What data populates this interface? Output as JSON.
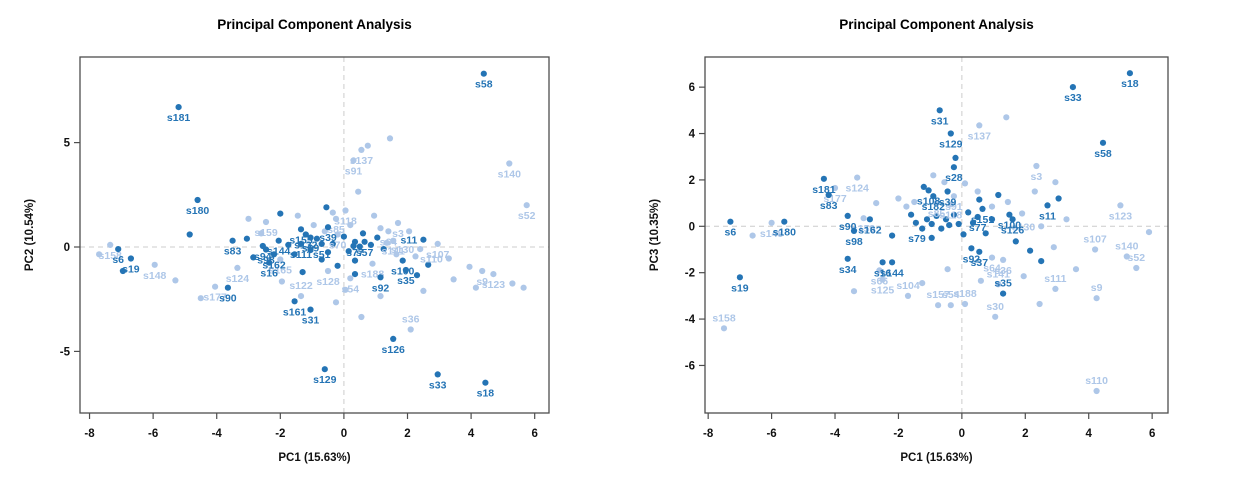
{
  "colors": {
    "dark_point": "#2474b5",
    "light_point": "#aec7e8",
    "frame": "#4d4d4d",
    "dashed_guide": "#cccccc",
    "tick_text": "#111111",
    "background": "#ffffff"
  },
  "chart_data": [
    {
      "type": "scatter",
      "title": "Principal Component Analysis",
      "xlabel": "PC1 (15.63%)",
      "ylabel": "PC2 (10.54%)",
      "xlim": [
        -8.3,
        6.45
      ],
      "ylim": [
        -7.95,
        9.1
      ],
      "xticks": [
        -8,
        -6,
        -4,
        -2,
        0,
        2,
        4,
        6
      ],
      "yticks": [
        -5,
        0,
        5
      ],
      "guides": {
        "x": 0,
        "y": 0
      },
      "grid": "dashed-zero-lines",
      "legend": "none",
      "labeled_dark": [
        [
          "s58",
          4.4,
          8.3
        ],
        [
          "s181",
          -5.2,
          6.7
        ],
        [
          "s180",
          -4.6,
          2.25
        ],
        [
          "s83",
          -3.5,
          0.3
        ],
        [
          "s6",
          -7.1,
          -0.1
        ],
        [
          "s19",
          -6.7,
          -0.55
        ],
        [
          "s94",
          -2.55,
          0.05
        ],
        [
          "s98",
          -2.45,
          -0.12
        ],
        [
          "s144",
          -2.05,
          0.3
        ],
        [
          "s162",
          -2.2,
          -0.35
        ],
        [
          "s16",
          -2.35,
          -0.75
        ],
        [
          "s90",
          -3.65,
          -1.95
        ],
        [
          "s161",
          -1.55,
          -2.6
        ],
        [
          "s31",
          -1.05,
          -3.0
        ],
        [
          "s129",
          -0.6,
          -5.85
        ],
        [
          "s126",
          1.55,
          -4.4
        ],
        [
          "s33",
          2.95,
          -6.1
        ],
        [
          "s18",
          4.45,
          -6.5
        ],
        [
          "s155",
          -1.35,
          0.85
        ],
        [
          "s132",
          -1.2,
          0.6
        ],
        [
          "s39",
          -0.5,
          0.95
        ],
        [
          "s99",
          -1.05,
          0.45
        ],
        [
          "s111",
          -1.35,
          0.15
        ],
        [
          "s51",
          -0.7,
          0.15
        ],
        [
          "s77",
          0.35,
          0.25
        ],
        [
          "s57",
          0.65,
          0.25
        ],
        [
          "s100",
          1.85,
          -0.65
        ],
        [
          "s35",
          1.95,
          -1.1
        ],
        [
          "s92",
          1.15,
          -1.45
        ],
        [
          "s11",
          2.5,
          0.35,
          "l"
        ]
      ],
      "labeled_light": [
        [
          "s158",
          -7.35,
          0.1
        ],
        [
          "s148",
          -5.95,
          -0.85
        ],
        [
          "s124",
          -3.35,
          -1.0
        ],
        [
          "s177",
          -4.05,
          -1.9
        ],
        [
          "s159",
          -2.45,
          1.2
        ],
        [
          "s118",
          0.05,
          1.75
        ],
        [
          "s85",
          -0.25,
          1.35
        ],
        [
          "s137",
          0.55,
          4.65
        ],
        [
          "s91",
          0.3,
          4.15
        ],
        [
          "s140",
          5.2,
          4.0
        ],
        [
          "s52",
          5.75,
          2.0
        ],
        [
          "s3",
          1.7,
          1.15
        ],
        [
          "s64",
          1.4,
          0.75
        ],
        [
          "s70",
          -0.2,
          0.6
        ],
        [
          "s141",
          1.55,
          0.3
        ],
        [
          "s130",
          2.4,
          -0.1,
          "l"
        ],
        [
          "s107",
          2.95,
          0.15
        ],
        [
          "s110",
          3.3,
          -0.55,
          "l"
        ],
        [
          "s188",
          0.9,
          -0.8
        ],
        [
          "s54",
          0.2,
          -1.5
        ],
        [
          "s122",
          -1.35,
          -2.35,
          "a"
        ],
        [
          "s36",
          2.1,
          -3.95,
          "a"
        ],
        [
          "s9",
          4.35,
          -1.15
        ],
        [
          "s123",
          4.7,
          -1.3
        ],
        [
          "s128",
          -0.5,
          -1.15
        ],
        [
          "s165",
          -2.0,
          -0.6
        ]
      ],
      "unlabeled_dark": [
        [
          -6.95,
          -1.15
        ],
        [
          -4.85,
          0.6
        ],
        [
          -3.05,
          0.4
        ],
        [
          -2.85,
          -0.5
        ],
        [
          -2.0,
          1.6
        ],
        [
          -1.75,
          0.1
        ],
        [
          -1.55,
          -0.35
        ],
        [
          -1.3,
          -1.2
        ],
        [
          -1.05,
          -0.15
        ],
        [
          -0.85,
          0.4
        ],
        [
          -0.7,
          -0.6
        ],
        [
          -0.5,
          -0.25
        ],
        [
          -0.35,
          0.15
        ],
        [
          -0.2,
          -0.9
        ],
        [
          0.0,
          0.5
        ],
        [
          0.15,
          -0.2
        ],
        [
          0.35,
          -0.65
        ],
        [
          0.6,
          0.65
        ],
        [
          0.85,
          0.1
        ],
        [
          1.05,
          0.45
        ],
        [
          1.25,
          -0.1
        ],
        [
          2.3,
          -1.35
        ],
        [
          2.65,
          -0.85
        ],
        [
          0.3,
          0.05
        ],
        [
          0.5,
          0.02
        ],
        [
          -0.55,
          1.9
        ],
        [
          0.35,
          -1.3
        ]
      ],
      "unlabeled_light": [
        [
          -7.7,
          -0.35
        ],
        [
          -5.3,
          -1.6
        ],
        [
          -4.5,
          -2.45
        ],
        [
          -3.0,
          1.35
        ],
        [
          -2.6,
          0.65
        ],
        [
          -1.95,
          -1.65
        ],
        [
          -1.45,
          1.5
        ],
        [
          -0.95,
          1.05
        ],
        [
          -0.6,
          0.75
        ],
        [
          -0.35,
          1.65
        ],
        [
          0.2,
          1.05
        ],
        [
          0.45,
          2.65
        ],
        [
          0.95,
          1.5
        ],
        [
          1.15,
          0.9
        ],
        [
          1.35,
          0.2
        ],
        [
          1.65,
          -0.35
        ],
        [
          2.05,
          0.75
        ],
        [
          2.25,
          -0.45
        ],
        [
          3.45,
          -1.55
        ],
        [
          3.95,
          -0.95
        ],
        [
          4.15,
          -1.95
        ],
        [
          5.3,
          -1.75
        ],
        [
          5.65,
          -1.95
        ],
        [
          1.45,
          5.2
        ],
        [
          0.05,
          -2.05
        ],
        [
          -0.25,
          -2.65
        ],
        [
          0.55,
          -3.35
        ],
        [
          1.15,
          -2.35
        ],
        [
          0.75,
          4.85
        ],
        [
          2.5,
          -2.1
        ]
      ]
    },
    {
      "type": "scatter",
      "title": "Principal Component Analysis",
      "xlabel": "PC1 (15.63%)",
      "ylabel": "PC3 (10.35%)",
      "xlim": [
        -8.1,
        6.5
      ],
      "ylim": [
        -8.05,
        7.3
      ],
      "xticks": [
        -8,
        -6,
        -4,
        -2,
        0,
        2,
        4,
        6
      ],
      "yticks": [
        -6,
        -4,
        -2,
        0,
        2,
        4,
        6
      ],
      "guides": {
        "x": 0,
        "y": 0
      },
      "grid": "dashed-zero-lines",
      "legend": "none",
      "labeled_dark": [
        [
          "s18",
          5.3,
          6.6
        ],
        [
          "s33",
          3.5,
          6.0
        ],
        [
          "s31",
          -0.7,
          5.0
        ],
        [
          "s129",
          -0.35,
          4.0
        ],
        [
          "s58",
          4.45,
          3.6
        ],
        [
          "s28",
          -0.25,
          2.55
        ],
        [
          "s181",
          -4.35,
          2.05
        ],
        [
          "s83",
          -4.2,
          1.35
        ],
        [
          "s108",
          -1.05,
          1.55
        ],
        [
          "s182",
          -0.9,
          1.3
        ],
        [
          "s39",
          -0.45,
          1.5
        ],
        [
          "s151",
          0.65,
          0.75
        ],
        [
          "s77",
          0.5,
          0.4
        ],
        [
          "s100",
          1.5,
          0.5
        ],
        [
          "s11",
          2.7,
          0.9
        ],
        [
          "s126",
          1.6,
          0.3
        ],
        [
          "s90",
          -3.6,
          0.45
        ],
        [
          "s98",
          -3.4,
          -0.2
        ],
        [
          "s162",
          -2.9,
          0.3
        ],
        [
          "s180",
          -5.6,
          0.2
        ],
        [
          "s6",
          -7.3,
          0.2
        ],
        [
          "s19",
          -7.0,
          -2.2
        ],
        [
          "s34",
          -3.6,
          -1.4
        ],
        [
          "s16",
          -2.5,
          -1.55
        ],
        [
          "s144",
          -2.2,
          -1.55
        ],
        [
          "s35",
          1.3,
          -2.9,
          "a"
        ],
        [
          "s92",
          0.3,
          -0.95
        ],
        [
          "s37",
          0.55,
          -1.1
        ],
        [
          "s79",
          -0.95,
          -0.5,
          "l"
        ]
      ],
      "labeled_light": [
        [
          "s137",
          0.55,
          4.35
        ],
        [
          "s3",
          2.35,
          2.6
        ],
        [
          "s124",
          -3.3,
          2.1
        ],
        [
          "s177",
          -4.0,
          1.65
        ],
        [
          "s91",
          -0.25,
          1.3
        ],
        [
          "s118",
          -0.35,
          0.95
        ],
        [
          "s85",
          -0.8,
          1.0
        ],
        [
          "s159",
          -3.1,
          0.35
        ],
        [
          "s123",
          5.0,
          0.9
        ],
        [
          "s130",
          2.5,
          0.0,
          "l"
        ],
        [
          "s107",
          4.2,
          -1.0,
          "a"
        ],
        [
          "s140",
          5.2,
          -1.3,
          "a"
        ],
        [
          "s52",
          5.5,
          -1.8,
          "a"
        ],
        [
          "s148",
          -6.0,
          0.15
        ],
        [
          "s64",
          0.95,
          -1.35
        ],
        [
          "s36",
          1.3,
          -1.45
        ],
        [
          "s66",
          -2.6,
          -1.9
        ],
        [
          "s125",
          -2.5,
          -2.3
        ],
        [
          "s104",
          -1.7,
          -3.0,
          "a"
        ],
        [
          "s157",
          -0.75,
          -3.4,
          "a"
        ],
        [
          "s54",
          -0.35,
          -3.4,
          "a"
        ],
        [
          "s188",
          0.1,
          -3.35,
          "a"
        ],
        [
          "s30",
          1.05,
          -3.9,
          "a"
        ],
        [
          "s141",
          1.15,
          -2.5,
          "a"
        ],
        [
          "s111",
          2.95,
          -2.7,
          "a"
        ],
        [
          "s9",
          4.25,
          -3.1,
          "a"
        ],
        [
          "s158",
          -7.5,
          -4.4,
          "a"
        ],
        [
          "s110",
          4.25,
          -7.1,
          "a"
        ]
      ],
      "unlabeled_dark": [
        [
          -0.2,
          2.95
        ],
        [
          -1.2,
          1.7
        ],
        [
          -1.6,
          0.5
        ],
        [
          -1.45,
          0.15
        ],
        [
          -1.25,
          -0.1
        ],
        [
          -1.1,
          0.3
        ],
        [
          -0.95,
          0.1
        ],
        [
          -0.8,
          0.45
        ],
        [
          -0.65,
          -0.1
        ],
        [
          -0.5,
          0.3
        ],
        [
          -0.4,
          0.05
        ],
        [
          -0.25,
          0.5
        ],
        [
          -0.1,
          0.1
        ],
        [
          0.05,
          -0.35
        ],
        [
          0.2,
          0.6
        ],
        [
          0.35,
          0.15
        ],
        [
          0.55,
          1.15
        ],
        [
          0.75,
          -0.3
        ],
        [
          0.95,
          0.3
        ],
        [
          1.15,
          1.35
        ],
        [
          1.7,
          -0.65
        ],
        [
          2.15,
          -1.05
        ],
        [
          2.5,
          -1.5
        ],
        [
          3.05,
          1.2
        ],
        [
          -2.2,
          -0.4
        ]
      ],
      "unlabeled_light": [
        [
          -2.7,
          1.0
        ],
        [
          -2.0,
          1.2
        ],
        [
          -1.75,
          0.85
        ],
        [
          -1.5,
          1.05
        ],
        [
          -0.9,
          2.2
        ],
        [
          -0.55,
          1.9
        ],
        [
          0.1,
          1.85
        ],
        [
          0.5,
          1.5
        ],
        [
          0.95,
          0.85
        ],
        [
          1.45,
          1.05
        ],
        [
          1.9,
          0.55
        ],
        [
          2.3,
          1.5
        ],
        [
          2.95,
          1.9
        ],
        [
          3.3,
          0.3
        ],
        [
          2.9,
          -0.9
        ],
        [
          3.6,
          -1.85
        ],
        [
          1.95,
          -2.15
        ],
        [
          0.6,
          -2.35
        ],
        [
          -0.45,
          -1.85
        ],
        [
          -1.25,
          -2.45
        ],
        [
          -3.4,
          -2.8
        ],
        [
          1.4,
          4.7
        ],
        [
          2.45,
          -3.35
        ],
        [
          -6.6,
          -0.4
        ],
        [
          5.9,
          -0.25
        ]
      ]
    }
  ]
}
